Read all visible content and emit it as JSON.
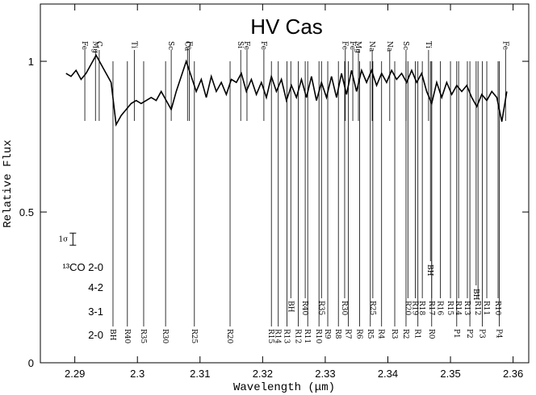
{
  "chart_data": {
    "type": "line",
    "title": "HV Cas",
    "x_label": "Wavelength (μm)",
    "y_label": "Relative Flux",
    "xlim": [
      2.2845,
      2.3625
    ],
    "ylim": [
      0,
      1.19
    ],
    "xticks": [
      2.29,
      2.3,
      2.31,
      2.32,
      2.33,
      2.34,
      2.35,
      2.36
    ],
    "yticks": [
      0,
      0.5,
      1
    ],
    "color": "#000000",
    "x": [
      2.2886,
      2.2894,
      2.2902,
      2.291,
      2.2918,
      2.2926,
      2.2934,
      2.2942,
      2.295,
      2.2958,
      2.2966,
      2.2974,
      2.2982,
      2.299,
      2.2998,
      2.3006,
      2.3014,
      2.3022,
      2.303,
      2.3038,
      2.3046,
      2.3054,
      2.3062,
      2.307,
      2.3078,
      2.3086,
      2.3094,
      2.3102,
      2.311,
      2.3118,
      2.3126,
      2.3134,
      2.3142,
      2.315,
      2.3158,
      2.3166,
      2.3174,
      2.3182,
      2.319,
      2.3198,
      2.3206,
      2.3214,
      2.3222,
      2.323,
      2.3238,
      2.3246,
      2.3254,
      2.3262,
      2.327,
      2.3278,
      2.3286,
      2.3294,
      2.3302,
      2.331,
      2.3318,
      2.3326,
      2.3334,
      2.3342,
      2.335,
      2.3358,
      2.3366,
      2.3374,
      2.3382,
      2.339,
      2.3398,
      2.3406,
      2.3414,
      2.3422,
      2.343,
      2.3438,
      2.3446,
      2.3454,
      2.3462,
      2.347,
      2.3478,
      2.3486,
      2.3494,
      2.3502,
      2.351,
      2.3518,
      2.3526,
      2.3534,
      2.3542,
      2.355,
      2.3558,
      2.3566,
      2.3574,
      2.3582,
      2.359
    ],
    "values": [
      0.96,
      0.95,
      0.97,
      0.94,
      0.96,
      0.99,
      1.02,
      0.99,
      0.96,
      0.93,
      0.79,
      0.82,
      0.84,
      0.86,
      0.87,
      0.86,
      0.87,
      0.88,
      0.87,
      0.9,
      0.87,
      0.84,
      0.9,
      0.95,
      1.0,
      0.95,
      0.9,
      0.94,
      0.88,
      0.95,
      0.9,
      0.93,
      0.89,
      0.94,
      0.93,
      0.96,
      0.9,
      0.94,
      0.89,
      0.93,
      0.88,
      0.95,
      0.9,
      0.94,
      0.87,
      0.92,
      0.88,
      0.94,
      0.88,
      0.95,
      0.87,
      0.93,
      0.88,
      0.95,
      0.88,
      0.96,
      0.89,
      0.97,
      0.9,
      0.97,
      0.93,
      0.97,
      0.92,
      0.96,
      0.93,
      0.97,
      0.94,
      0.96,
      0.93,
      0.97,
      0.93,
      0.96,
      0.9,
      0.86,
      0.93,
      0.88,
      0.93,
      0.89,
      0.92,
      0.9,
      0.92,
      0.88,
      0.85,
      0.89,
      0.87,
      0.9,
      0.88,
      0.8,
      0.9
    ],
    "atomic_lines": {
      "x": [
        2.2916,
        2.2933,
        2.2939,
        2.2995,
        2.3054,
        2.308,
        2.3083,
        2.3165,
        2.3175,
        2.3202,
        2.3332,
        2.3344,
        2.3353,
        2.3375,
        2.3403,
        2.3429,
        2.3465,
        2.3588
      ],
      "labels": [
        "Fe",
        "Mg",
        "C",
        "Ti",
        "Sc",
        "Ca",
        "Fe",
        "Si",
        "Fe",
        "Fe",
        "Fe",
        "Fe",
        "Mg",
        "Na",
        "Na",
        "Sc",
        "Ti",
        "Fe"
      ]
    },
    "line_ids": [
      {
        "band": "2-0",
        "x": [
          2.2961,
          2.2984,
          2.301,
          2.3045,
          2.3091,
          2.3148,
          2.3214,
          2.3225,
          2.3239,
          2.3257,
          2.3272,
          2.329,
          2.3304,
          2.3321,
          2.3337,
          2.3355,
          2.3372,
          2.339,
          2.3411,
          2.3429,
          2.3448,
          2.347,
          2.351,
          2.3531,
          2.3551,
          2.3578
        ],
        "labels": [
          "BH",
          "R40",
          "R35",
          "R30",
          "R25",
          "R20",
          "R15",
          "R14",
          "R13",
          "R12",
          "R11",
          "R10",
          "R9",
          "R8",
          "R7",
          "R6",
          "R5",
          "R4",
          "R3",
          "R2",
          "R1",
          "R0",
          "P1",
          "P2",
          "P3",
          "P4"
        ]
      },
      {
        "band": "3-1",
        "x": [
          2.3245,
          2.3268,
          2.3294,
          2.3331,
          2.3376,
          2.3432,
          2.3444,
          2.3455,
          2.347,
          2.3484,
          2.35,
          2.3513,
          2.3527,
          2.3544,
          2.3558,
          2.3576
        ],
        "labels": [
          "BH",
          "R40",
          "R35",
          "R30",
          "R25",
          "R20",
          "R19",
          "R18",
          "R17",
          "R16",
          "R15",
          "R14",
          "R13",
          "R12",
          "R11",
          "R10"
        ]
      },
      {
        "band": "4-2",
        "x": [
          2.3541
        ],
        "labels": [
          "BH"
        ]
      },
      {
        "band": "¹³CO 2-0",
        "x": [
          2.3468
        ],
        "labels": [
          "BH"
        ]
      }
    ],
    "error_bar": {
      "label": "1σ",
      "x": 2.2897,
      "value": 0.41,
      "error": 0.02
    }
  }
}
